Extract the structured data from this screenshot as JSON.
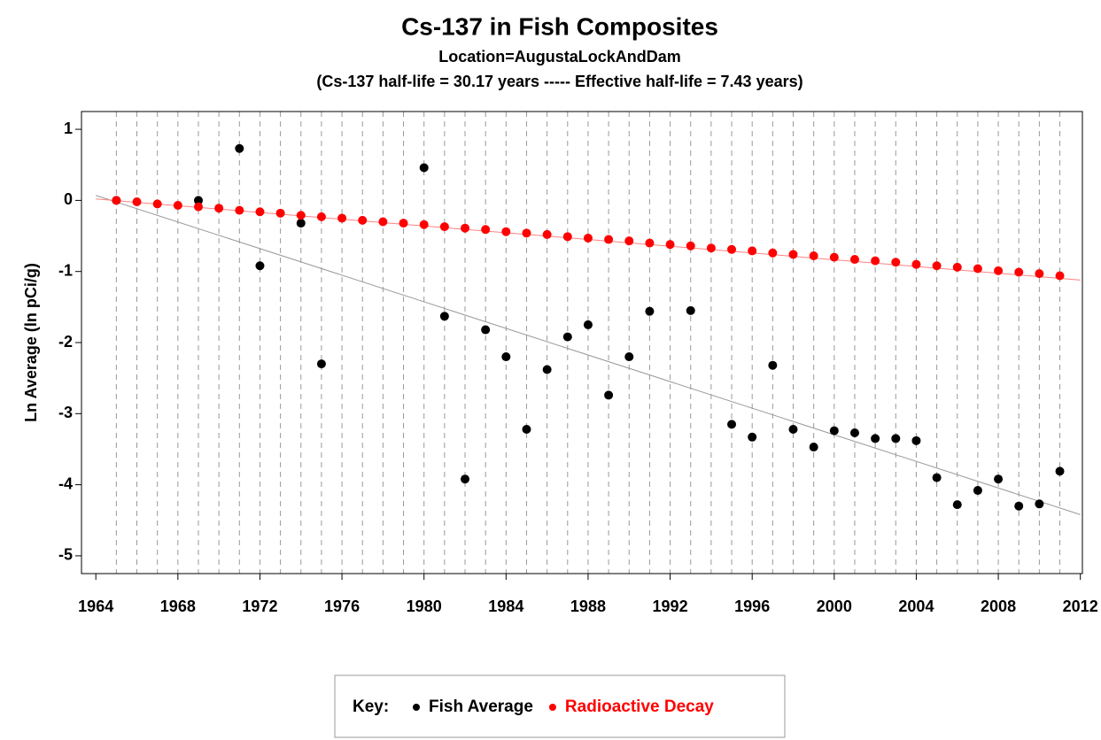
{
  "chart_data": {
    "type": "scatter",
    "title": "Cs-137 in Fish Composites",
    "subtitle": "Location=AugustaLockAndDam",
    "subtitle2": "(Cs-137 half-life = 30.17 years ----- Effective half-life =  7.43 years)",
    "y_label": "Ln Average (ln pCi/g)",
    "legend_title": "Key:",
    "xlim": [
      1963.3,
      2012.1
    ],
    "ylim": [
      -5.25,
      1.25
    ],
    "xticks": [
      1964,
      1968,
      1972,
      1976,
      1980,
      1984,
      1988,
      1992,
      1996,
      2000,
      2004,
      2008,
      2012
    ],
    "yticks": [
      -5,
      -4,
      -3,
      -2,
      -1,
      0,
      1
    ],
    "series": [
      {
        "name": "Fish Average",
        "color": "#000000",
        "x": [
          1965,
          1969,
          1971,
          1972,
          1974,
          1975,
          1980,
          1981,
          1982,
          1983,
          1984,
          1985,
          1986,
          1987,
          1988,
          1989,
          1990,
          1991,
          1993,
          1995,
          1996,
          1997,
          1998,
          1999,
          2000,
          2001,
          2002,
          2003,
          2004,
          2005,
          2006,
          2007,
          2008,
          2009,
          2010,
          2011
        ],
        "values": [
          0.0,
          0.0,
          0.73,
          -0.92,
          -0.32,
          -2.3,
          0.46,
          -1.63,
          -3.92,
          -1.82,
          -2.2,
          -3.22,
          -2.38,
          -1.92,
          -1.75,
          -2.74,
          -2.2,
          -1.56,
          -1.55,
          -3.15,
          -3.33,
          -2.32,
          -3.22,
          -3.47,
          -3.24,
          -3.27,
          -3.35,
          -3.35,
          -3.38,
          -3.9,
          -4.28,
          -4.08,
          -3.92,
          -4.3,
          -4.27,
          -3.81
        ]
      },
      {
        "name": "Radioactive Decay",
        "color": "#ff0000",
        "x": [
          1965,
          1966,
          1967,
          1968,
          1969,
          1970,
          1971,
          1972,
          1973,
          1974,
          1975,
          1976,
          1977,
          1978,
          1979,
          1980,
          1981,
          1982,
          1983,
          1984,
          1985,
          1986,
          1987,
          1988,
          1989,
          1990,
          1991,
          1992,
          1993,
          1994,
          1995,
          1996,
          1997,
          1998,
          1999,
          2000,
          2001,
          2002,
          2003,
          2004,
          2005,
          2006,
          2007,
          2008,
          2009,
          2010,
          2011
        ],
        "values": [
          0,
          -0.02,
          -0.05,
          -0.07,
          -0.09,
          -0.11,
          -0.14,
          -0.16,
          -0.18,
          -0.21,
          -0.23,
          -0.25,
          -0.28,
          -0.3,
          -0.32,
          -0.34,
          -0.37,
          -0.39,
          -0.41,
          -0.44,
          -0.46,
          -0.48,
          -0.51,
          -0.53,
          -0.55,
          -0.57,
          -0.6,
          -0.62,
          -0.64,
          -0.67,
          -0.69,
          -0.71,
          -0.74,
          -0.76,
          -0.78,
          -0.8,
          -0.83,
          -0.85,
          -0.87,
          -0.9,
          -0.92,
          -0.94,
          -0.96,
          -0.99,
          -1.01,
          -1.03,
          -1.06
        ]
      }
    ],
    "trend_lines": [
      {
        "color": "#999999",
        "x": [
          1964,
          2012
        ],
        "values": [
          0.07,
          -4.42
        ]
      },
      {
        "color": "#ff8080",
        "x": [
          1964,
          2012
        ],
        "values": [
          0.02,
          -1.12
        ]
      }
    ]
  }
}
